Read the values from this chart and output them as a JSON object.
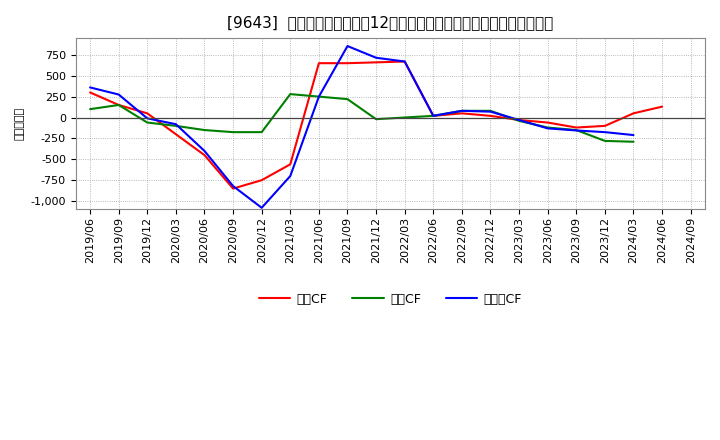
{
  "title": "[9643]  キャッシュフローの12か月移動合計の対前年同期増減額の推移",
  "ylabel": "（百万円）",
  "background_color": "#ffffff",
  "plot_background_color": "#ffffff",
  "grid_color": "#999999",
  "x_labels": [
    "2019/06",
    "2019/09",
    "2019/12",
    "2020/03",
    "2020/06",
    "2020/09",
    "2020/12",
    "2021/03",
    "2021/06",
    "2021/09",
    "2021/12",
    "2022/03",
    "2022/06",
    "2022/09",
    "2022/12",
    "2023/03",
    "2023/06",
    "2023/09",
    "2023/12",
    "2024/03",
    "2024/06",
    "2024/09"
  ],
  "eigyo_cf": [
    300,
    150,
    50,
    -200,
    -450,
    -850,
    -750,
    -560,
    650,
    650,
    660,
    670,
    20,
    50,
    20,
    -30,
    -60,
    -120,
    -100,
    50,
    130,
    null
  ],
  "toshi_cf": [
    100,
    150,
    -60,
    -100,
    -150,
    -175,
    -175,
    280,
    250,
    220,
    -20,
    0,
    20,
    80,
    80,
    -40,
    -120,
    -150,
    -280,
    -290,
    null,
    null
  ],
  "free_cf": [
    360,
    275,
    -10,
    -80,
    -400,
    -820,
    -1080,
    -700,
    250,
    855,
    715,
    670,
    20,
    80,
    70,
    -30,
    -130,
    -155,
    -175,
    -210,
    null,
    null
  ],
  "series_colors": {
    "eigyo": "#ff0000",
    "toshi": "#008000",
    "free": "#0000ff"
  },
  "legend_labels": {
    "eigyo": "営業CF",
    "toshi": "投資CF",
    "free": "フリーCF"
  },
  "ylim": [
    -1100,
    950
  ],
  "yticks": [
    -1000,
    -750,
    -500,
    -250,
    0,
    250,
    500,
    750
  ],
  "title_fontsize": 11,
  "axis_fontsize": 8,
  "legend_fontsize": 9
}
